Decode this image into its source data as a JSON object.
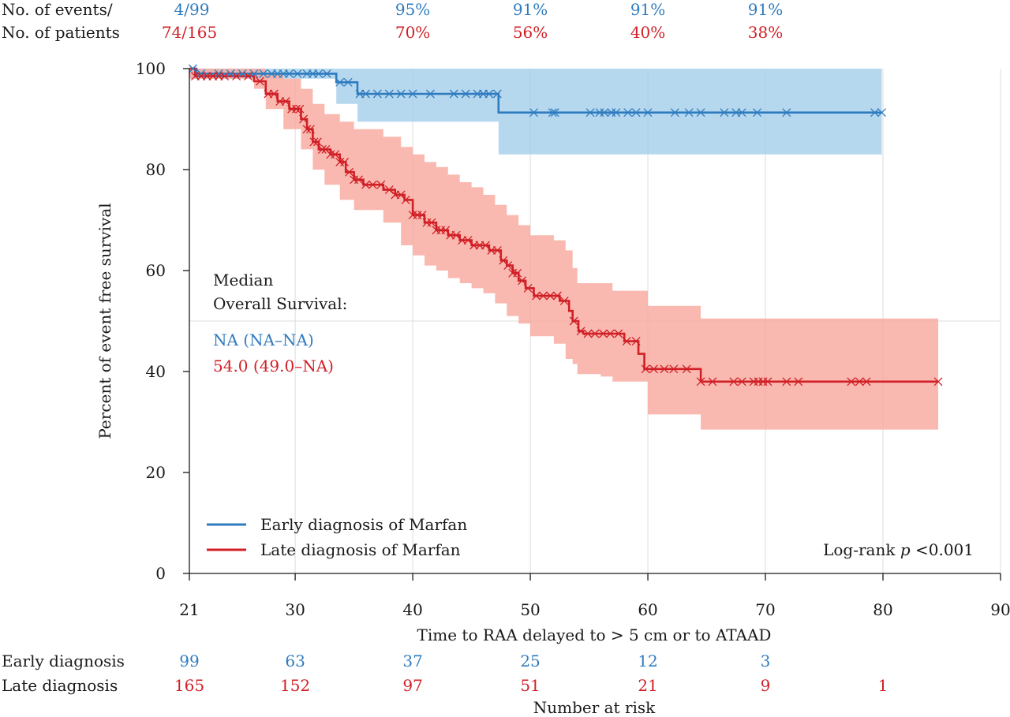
{
  "chart_data": {
    "type": "line",
    "subtype": "kaplan-meier",
    "xlabel": "Time to RAA delayed to > 5 cm or to ATAAD",
    "ylabel": "Percent of event free survival",
    "xlim": [
      21,
      90
    ],
    "ylim": [
      0,
      100
    ],
    "x_ticks": [
      21,
      30,
      40,
      50,
      60,
      70,
      80,
      90
    ],
    "y_ticks": [
      0,
      20,
      40,
      60,
      80,
      100
    ],
    "grid": true,
    "reference_line_y": 50,
    "colors": {
      "early": "#2f7bbf",
      "late": "#d11f26",
      "early_band": "#9dcbe8",
      "late_band": "#f8a79c",
      "text": "#1a1a1a"
    },
    "legend": {
      "position": "bottom-left",
      "entries": [
        "Early diagnosis of Marfan",
        "Late diagnosis of Marfan"
      ]
    },
    "header": {
      "labels": [
        "No. of events/",
        "No. of patients"
      ],
      "early_counts": "4/99",
      "late_counts": "74/165",
      "percent_x": [
        40,
        50,
        60,
        70
      ],
      "early_percent": [
        "95%",
        "91%",
        "91%",
        "91%"
      ],
      "late_percent": [
        "70%",
        "56%",
        "40%",
        "38%"
      ]
    },
    "median": {
      "label_line1": "Median",
      "label_line2": "Overall Survival:",
      "early": "NA (NA–NA)",
      "late": "54.0 (49.0–NA)"
    },
    "logrank": {
      "prefix": "Log-rank ",
      "p": "p",
      "suffix": " <0.001"
    },
    "risk_table": {
      "title": "Number at risk",
      "x": [
        21,
        30,
        40,
        50,
        60,
        70,
        80
      ],
      "rows": [
        {
          "label": "Early diagnosis",
          "values": [
            "99",
            "63",
            "37",
            "25",
            "12",
            "3",
            ""
          ]
        },
        {
          "label": "Late diagnosis",
          "values": [
            "165",
            "152",
            "97",
            "51",
            "21",
            "9",
            "1"
          ]
        }
      ]
    },
    "series": [
      {
        "name": "Early diagnosis of Marfan",
        "steps": [
          [
            21,
            100
          ],
          [
            21.6,
            99
          ],
          [
            33.5,
            97.3
          ],
          [
            35.3,
            95
          ],
          [
            47.3,
            91.3
          ],
          [
            79.9,
            91.3
          ]
        ],
        "ci_steps": [
          [
            21,
            100,
            98
          ],
          [
            33.5,
            100,
            93
          ],
          [
            35.3,
            100,
            89.5
          ],
          [
            47.3,
            100,
            83
          ],
          [
            79.9,
            100,
            83
          ]
        ],
        "censored": [
          21.3,
          22,
          23.5,
          24.5,
          25.5,
          26.5,
          27.3,
          28,
          28.5,
          29,
          29.5,
          30.2,
          31,
          31.5,
          32,
          32.7,
          33.8,
          34.5,
          35.5,
          36,
          37,
          38,
          39,
          40,
          41.5,
          43.5,
          44.5,
          45.5,
          46,
          46.5,
          47.2,
          50.3,
          51.9,
          52.1,
          55.1,
          55.9,
          56.3,
          56.9,
          57.3,
          58.3,
          59,
          60,
          62.3,
          63.5,
          64.5,
          66.5,
          67.5,
          68,
          69.3,
          71.8,
          79.3,
          79.9
        ]
      },
      {
        "name": "Late diagnosis of Marfan",
        "steps": [
          [
            21,
            100
          ],
          [
            21.5,
            98.5
          ],
          [
            26.5,
            97.5
          ],
          [
            27.5,
            95
          ],
          [
            28.5,
            93.5
          ],
          [
            29.5,
            92
          ],
          [
            30.5,
            90
          ],
          [
            31,
            88
          ],
          [
            31.5,
            85.5
          ],
          [
            32,
            84
          ],
          [
            33,
            83
          ],
          [
            33.8,
            81.5
          ],
          [
            34.3,
            79.5
          ],
          [
            35,
            78
          ],
          [
            35.8,
            77
          ],
          [
            37.5,
            76
          ],
          [
            38.5,
            75
          ],
          [
            39.3,
            74
          ],
          [
            40,
            71
          ],
          [
            41,
            69.5
          ],
          [
            42,
            68
          ],
          [
            43,
            67
          ],
          [
            44,
            66
          ],
          [
            45,
            65
          ],
          [
            46.5,
            64
          ],
          [
            47.5,
            62
          ],
          [
            48,
            61
          ],
          [
            48.5,
            59.5
          ],
          [
            49,
            58
          ],
          [
            49.6,
            56.5
          ],
          [
            50.3,
            55
          ],
          [
            52.5,
            54
          ],
          [
            53.3,
            52
          ],
          [
            53.6,
            50
          ],
          [
            54.1,
            48
          ],
          [
            54.5,
            47.5
          ],
          [
            58,
            46
          ],
          [
            59.2,
            43.5
          ],
          [
            59.7,
            40.5
          ],
          [
            64.5,
            38
          ],
          [
            84.7,
            38
          ]
        ],
        "ci_steps": [
          [
            21,
            100,
            98
          ],
          [
            26.5,
            100,
            96
          ],
          [
            27.5,
            99,
            92
          ],
          [
            29,
            98,
            88
          ],
          [
            30.5,
            96,
            84
          ],
          [
            31.5,
            93,
            80
          ],
          [
            32.5,
            91,
            77
          ],
          [
            33.8,
            89.5,
            74
          ],
          [
            35,
            88,
            72
          ],
          [
            37.5,
            86.5,
            69.5
          ],
          [
            39,
            84.5,
            65
          ],
          [
            40,
            83,
            63
          ],
          [
            41,
            81.5,
            61
          ],
          [
            42,
            80.5,
            60
          ],
          [
            43,
            79,
            58.5
          ],
          [
            44,
            77.5,
            57.5
          ],
          [
            45,
            76.5,
            56.5
          ],
          [
            46,
            75,
            55.5
          ],
          [
            47,
            73,
            53.5
          ],
          [
            48,
            71,
            51
          ],
          [
            49,
            69,
            49.5
          ],
          [
            50,
            67,
            47
          ],
          [
            52,
            66,
            45.5
          ],
          [
            53,
            64,
            42.5
          ],
          [
            53.6,
            60.5,
            41.5
          ],
          [
            54,
            57.5,
            39.5
          ],
          [
            56,
            57.5,
            39
          ],
          [
            57,
            56,
            38
          ],
          [
            60,
            53,
            31.5
          ],
          [
            64.5,
            50.5,
            28.5
          ],
          [
            84.7,
            50.5,
            28.5
          ]
        ],
        "censored": [
          21.5,
          22,
          22.5,
          23,
          23.5,
          24,
          25,
          26,
          27,
          27.7,
          28.2,
          28.7,
          29.2,
          29.7,
          30.1,
          30.4,
          30.7,
          31,
          31.3,
          31.6,
          31.9,
          32.3,
          32.6,
          33,
          33.4,
          33.8,
          34.2,
          34.6,
          35,
          35.4,
          36,
          36.6,
          37.3,
          38,
          38.5,
          39,
          39.4,
          40,
          40.4,
          40.8,
          41.2,
          41.6,
          42,
          42.4,
          42.8,
          43.2,
          43.7,
          44.2,
          44.7,
          45.2,
          45.7,
          46.2,
          46.7,
          47.2,
          47.7,
          48.1,
          48.5,
          48.9,
          49.3,
          49.8,
          50.5,
          51.1,
          51.7,
          52.3,
          52.9,
          53.7,
          54.3,
          54.9,
          55.5,
          56.2,
          56.8,
          57.5,
          58.2,
          59,
          59.8,
          60.5,
          61.4,
          62.2,
          63.3,
          64.5,
          65.5,
          67.3,
          68,
          69,
          69.4,
          69.8,
          70.2,
          71.8,
          72.8,
          77.3,
          78,
          78.6,
          84.7
        ]
      }
    ]
  }
}
